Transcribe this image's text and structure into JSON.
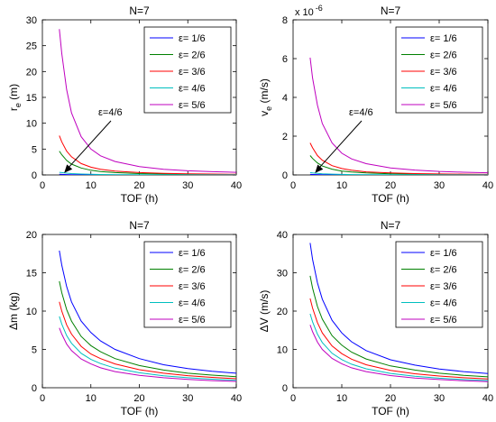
{
  "chart_data": [
    {
      "type": "line",
      "title": "N=7",
      "xlabel": "TOF (h)",
      "ylabel": "r_e (m)",
      "xlim": [
        0,
        40
      ],
      "ylim": [
        0,
        30
      ],
      "xticks": [
        0,
        10,
        20,
        30,
        40
      ],
      "yticks": [
        0,
        5,
        10,
        15,
        20,
        25,
        30
      ],
      "exponent_label": "",
      "legend": "top-right",
      "annotation": {
        "text": "ε=4/6",
        "x": 4.5,
        "y": 0.4
      },
      "x": [
        3.5,
        4,
        5,
        6,
        8,
        10,
        12,
        15,
        20,
        25,
        30,
        35,
        40
      ],
      "series": [
        {
          "name": "ε= 1/6",
          "color": "#0000ff",
          "values": [
            0.12,
            0.1,
            0.07,
            0.05,
            0.03,
            0.02,
            0.015,
            0.01,
            0.006,
            0.004,
            0.003,
            0.002,
            0.002
          ]
        },
        {
          "name": "ε= 2/6",
          "color": "#008000",
          "values": [
            4.6,
            3.9,
            2.8,
            2.1,
            1.35,
            0.9,
            0.66,
            0.45,
            0.27,
            0.18,
            0.13,
            0.1,
            0.08
          ]
        },
        {
          "name": "ε= 3/6",
          "color": "#ff0000",
          "values": [
            7.6,
            6.4,
            4.6,
            3.5,
            2.2,
            1.5,
            1.1,
            0.75,
            0.45,
            0.3,
            0.22,
            0.17,
            0.13
          ]
        },
        {
          "name": "ε= 4/6",
          "color": "#00bfbf",
          "values": [
            0.5,
            0.45,
            0.35,
            0.27,
            0.18,
            0.12,
            0.09,
            0.06,
            0.04,
            0.03,
            0.02,
            0.015,
            0.01
          ]
        },
        {
          "name": "ε= 5/6",
          "color": "#bf00bf",
          "values": [
            28.2,
            23.5,
            16.5,
            12.0,
            7.4,
            5.0,
            3.7,
            2.6,
            1.6,
            1.1,
            0.8,
            0.62,
            0.5
          ]
        }
      ]
    },
    {
      "type": "line",
      "title": "N=7",
      "xlabel": "TOF (h)",
      "ylabel": "v_e (m/s)",
      "xlim": [
        0,
        40
      ],
      "ylim": [
        0,
        8
      ],
      "xticks": [
        0,
        10,
        20,
        30,
        40
      ],
      "yticks": [
        0,
        2,
        4,
        6,
        8
      ],
      "exponent_label": "x 10",
      "exponent_power": "-6",
      "legend": "top-right",
      "annotation": {
        "text": "ε=4/6",
        "x": 4.5,
        "y": 0.1
      },
      "x": [
        3.5,
        4,
        5,
        6,
        8,
        10,
        12,
        15,
        20,
        25,
        30,
        35,
        40
      ],
      "series": [
        {
          "name": "ε= 1/6",
          "color": "#0000ff",
          "values": [
            0.03,
            0.025,
            0.018,
            0.013,
            0.008,
            0.005,
            0.004,
            0.003,
            0.002,
            0.001,
            0.001,
            0.001,
            0.001
          ]
        },
        {
          "name": "ε= 2/6",
          "color": "#008000",
          "values": [
            1.0,
            0.85,
            0.62,
            0.46,
            0.3,
            0.2,
            0.15,
            0.1,
            0.06,
            0.04,
            0.03,
            0.02,
            0.02
          ]
        },
        {
          "name": "ε= 3/6",
          "color": "#ff0000",
          "values": [
            1.65,
            1.4,
            1.0,
            0.76,
            0.48,
            0.33,
            0.24,
            0.16,
            0.1,
            0.07,
            0.05,
            0.04,
            0.03
          ]
        },
        {
          "name": "ε= 4/6",
          "color": "#00bfbf",
          "values": [
            0.12,
            0.1,
            0.08,
            0.06,
            0.04,
            0.03,
            0.02,
            0.015,
            0.01,
            0.007,
            0.005,
            0.004,
            0.003
          ]
        },
        {
          "name": "ε= 5/6",
          "color": "#bf00bf",
          "values": [
            6.05,
            5.0,
            3.6,
            2.65,
            1.65,
            1.12,
            0.83,
            0.58,
            0.36,
            0.25,
            0.18,
            0.14,
            0.11
          ]
        }
      ]
    },
    {
      "type": "line",
      "title": "N=7",
      "xlabel": "TOF (h)",
      "ylabel": "Δm (kg)",
      "xlim": [
        0,
        40
      ],
      "ylim": [
        0,
        20
      ],
      "xticks": [
        0,
        10,
        20,
        30,
        40
      ],
      "yticks": [
        0,
        5,
        10,
        15,
        20
      ],
      "exponent_label": "",
      "legend": "top-right",
      "x": [
        3.5,
        4,
        5,
        6,
        8,
        10,
        12,
        15,
        20,
        25,
        30,
        35,
        40
      ],
      "series": [
        {
          "name": "ε= 1/6",
          "color": "#0000ff",
          "values": [
            17.9,
            16.0,
            13.2,
            11.2,
            8.7,
            7.2,
            6.1,
            5.0,
            3.8,
            3.0,
            2.5,
            2.15,
            1.9
          ]
        },
        {
          "name": "ε= 2/6",
          "color": "#008000",
          "values": [
            13.9,
            12.4,
            10.2,
            8.7,
            6.7,
            5.5,
            4.7,
            3.8,
            2.9,
            2.3,
            1.9,
            1.65,
            1.45
          ]
        },
        {
          "name": "ε= 3/6",
          "color": "#ff0000",
          "values": [
            11.2,
            10.0,
            8.2,
            7.0,
            5.4,
            4.4,
            3.8,
            3.1,
            2.35,
            1.9,
            1.58,
            1.35,
            1.18
          ]
        },
        {
          "name": "ε= 4/6",
          "color": "#00bfbf",
          "values": [
            9.3,
            8.3,
            6.8,
            5.8,
            4.5,
            3.7,
            3.15,
            2.55,
            1.95,
            1.57,
            1.31,
            1.12,
            0.98
          ]
        },
        {
          "name": "ε= 5/6",
          "color": "#bf00bf",
          "values": [
            7.8,
            7.0,
            5.7,
            4.85,
            3.75,
            3.1,
            2.6,
            2.1,
            1.62,
            1.3,
            1.09,
            0.93,
            0.82
          ]
        }
      ]
    },
    {
      "type": "line",
      "title": "N=7",
      "xlabel": "TOF (h)",
      "ylabel": "ΔV (m/s)",
      "xlim": [
        0,
        40
      ],
      "ylim": [
        0,
        40
      ],
      "xticks": [
        0,
        10,
        20,
        30,
        40
      ],
      "yticks": [
        0,
        10,
        20,
        30,
        40
      ],
      "exponent_label": "",
      "legend": "top-right",
      "x": [
        3.5,
        4,
        5,
        6,
        8,
        10,
        12,
        15,
        20,
        25,
        30,
        35,
        40
      ],
      "series": [
        {
          "name": "ε= 1/6",
          "color": "#0000ff",
          "values": [
            37.8,
            33.5,
            27.4,
            23.1,
            17.6,
            14.3,
            12.0,
            9.7,
            7.3,
            5.9,
            4.9,
            4.2,
            3.7
          ]
        },
        {
          "name": "ε= 2/6",
          "color": "#008000",
          "values": [
            29.2,
            26.0,
            21.2,
            17.9,
            13.6,
            11.1,
            9.3,
            7.5,
            5.7,
            4.6,
            3.8,
            3.25,
            2.85
          ]
        },
        {
          "name": "ε= 3/6",
          "color": "#ff0000",
          "values": [
            23.3,
            20.8,
            17.0,
            14.3,
            10.9,
            8.9,
            7.45,
            6.0,
            4.55,
            3.65,
            3.05,
            2.6,
            2.28
          ]
        },
        {
          "name": "ε= 4/6",
          "color": "#00bfbf",
          "values": [
            19.3,
            17.2,
            14.0,
            11.8,
            9.0,
            7.35,
            6.15,
            4.95,
            3.75,
            3.0,
            2.5,
            2.15,
            1.88
          ]
        },
        {
          "name": "ε= 5/6",
          "color": "#bf00bf",
          "values": [
            16.4,
            14.6,
            11.9,
            10.0,
            7.65,
            6.25,
            5.2,
            4.2,
            3.18,
            2.55,
            2.13,
            1.82,
            1.6
          ]
        }
      ]
    }
  ]
}
